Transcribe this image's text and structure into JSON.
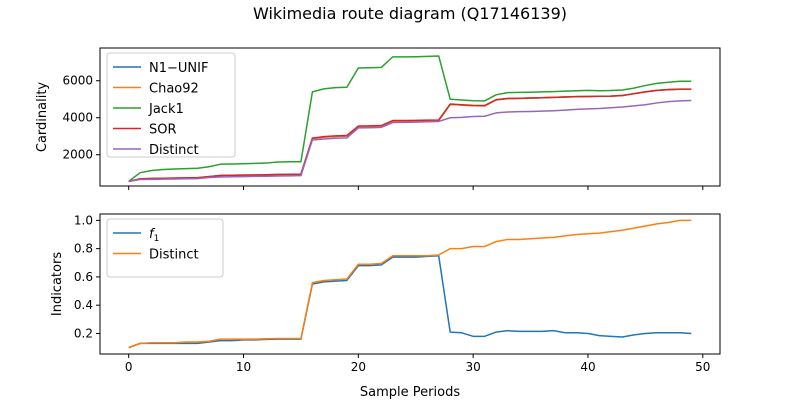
{
  "figure": {
    "title": "Wikimedia route diagram (Q17146139)",
    "xlabel": "Sample Periods"
  },
  "chart_data": [
    {
      "type": "line",
      "title": "",
      "xlabel": "",
      "ylabel": "Cardinality",
      "xlim": [
        -2.5,
        51.5
      ],
      "ylim": [
        310,
        7770
      ],
      "xticks": [
        0,
        10,
        20,
        30,
        40,
        50
      ],
      "yticks": [
        2000,
        4000,
        6000
      ],
      "show_xtick_labels": false,
      "grid": false,
      "legend_position": "upper-left",
      "x": [
        0,
        1,
        2,
        3,
        4,
        5,
        6,
        7,
        8,
        9,
        10,
        11,
        12,
        13,
        14,
        15,
        16,
        17,
        18,
        19,
        20,
        21,
        22,
        23,
        24,
        25,
        26,
        27,
        28,
        29,
        30,
        31,
        32,
        33,
        34,
        35,
        36,
        37,
        38,
        39,
        40,
        41,
        42,
        43,
        44,
        45,
        46,
        47,
        48,
        49
      ],
      "series": [
        {
          "name": "N1−UNIF",
          "color": "#1f77b4",
          "values": [
            560,
            680,
            700,
            720,
            730,
            740,
            750,
            820,
            880,
            890,
            900,
            905,
            915,
            930,
            940,
            950,
            2880,
            2950,
            2990,
            3010,
            3510,
            3520,
            3540,
            3820,
            3820,
            3830,
            3840,
            3850,
            4720,
            4690,
            4650,
            4640,
            4960,
            5040,
            5050,
            5070,
            5080,
            5100,
            5120,
            5140,
            5150,
            5160,
            5170,
            5200,
            5300,
            5400,
            5480,
            5520,
            5540,
            5540
          ]
        },
        {
          "name": "Chao92",
          "color": "#ff7f0e",
          "values": [
            560,
            680,
            700,
            720,
            730,
            740,
            750,
            820,
            880,
            890,
            900,
            905,
            915,
            930,
            940,
            950,
            2880,
            2950,
            2990,
            3010,
            3510,
            3520,
            3540,
            3820,
            3820,
            3830,
            3840,
            3850,
            4720,
            4690,
            4650,
            4640,
            4960,
            5040,
            5050,
            5070,
            5080,
            5100,
            5120,
            5140,
            5150,
            5160,
            5170,
            5200,
            5300,
            5400,
            5480,
            5520,
            5540,
            5540
          ]
        },
        {
          "name": "Jack1",
          "color": "#2ca02c",
          "values": [
            560,
            1030,
            1150,
            1200,
            1230,
            1250,
            1270,
            1350,
            1490,
            1500,
            1510,
            1530,
            1550,
            1610,
            1620,
            1620,
            5400,
            5560,
            5630,
            5650,
            6690,
            6700,
            6720,
            7290,
            7290,
            7300,
            7320,
            7340,
            5000,
            4960,
            4920,
            4910,
            5240,
            5360,
            5370,
            5380,
            5400,
            5410,
            5440,
            5460,
            5480,
            5460,
            5470,
            5500,
            5600,
            5740,
            5860,
            5920,
            5970,
            5970
          ]
        },
        {
          "name": "SOR",
          "color": "#d62728",
          "values": [
            560,
            700,
            720,
            730,
            740,
            750,
            760,
            820,
            880,
            890,
            900,
            905,
            915,
            930,
            940,
            950,
            2900,
            2980,
            3020,
            3040,
            3550,
            3560,
            3580,
            3850,
            3850,
            3860,
            3870,
            3880,
            4740,
            4700,
            4670,
            4660,
            4980,
            5040,
            5050,
            5070,
            5080,
            5100,
            5120,
            5140,
            5150,
            5160,
            5170,
            5200,
            5300,
            5400,
            5480,
            5520,
            5550,
            5550
          ]
        },
        {
          "name": "Distinct",
          "color": "#9467bd",
          "values": [
            560,
            660,
            670,
            680,
            690,
            700,
            710,
            770,
            800,
            810,
            820,
            830,
            840,
            850,
            860,
            870,
            2800,
            2850,
            2890,
            2910,
            3450,
            3460,
            3480,
            3740,
            3750,
            3760,
            3780,
            3800,
            4000,
            4020,
            4070,
            4080,
            4260,
            4310,
            4330,
            4340,
            4360,
            4380,
            4410,
            4450,
            4480,
            4500,
            4540,
            4580,
            4640,
            4700,
            4800,
            4870,
            4910,
            4930
          ]
        }
      ]
    },
    {
      "type": "line",
      "title": "",
      "xlabel": "Sample Periods",
      "ylabel": "Indicators",
      "xlim": [
        -2.5,
        51.5
      ],
      "ylim": [
        0.055,
        1.045
      ],
      "xticks": [
        0,
        10,
        20,
        30,
        40,
        50
      ],
      "yticks": [
        0.2,
        0.4,
        0.6,
        0.8,
        1.0
      ],
      "ytick_labels": [
        "0.2",
        "0.4",
        "0.6",
        "0.8",
        "1.0"
      ],
      "show_xtick_labels": true,
      "grid": false,
      "legend_position": "upper-left",
      "x": [
        0,
        1,
        2,
        3,
        4,
        5,
        6,
        7,
        8,
        9,
        10,
        11,
        12,
        13,
        14,
        15,
        16,
        17,
        18,
        19,
        20,
        21,
        22,
        23,
        24,
        25,
        26,
        27,
        28,
        29,
        30,
        31,
        32,
        33,
        34,
        35,
        36,
        37,
        38,
        39,
        40,
        41,
        42,
        43,
        44,
        45,
        46,
        47,
        48,
        49
      ],
      "series": [
        {
          "name": "f",
          "name_subscript": "1",
          "color": "#1f77b4",
          "values": [
            0.1,
            0.13,
            0.13,
            0.13,
            0.13,
            0.13,
            0.13,
            0.14,
            0.15,
            0.15,
            0.155,
            0.155,
            0.158,
            0.16,
            0.16,
            0.16,
            0.55,
            0.565,
            0.57,
            0.575,
            0.68,
            0.68,
            0.685,
            0.74,
            0.74,
            0.74,
            0.745,
            0.75,
            0.21,
            0.205,
            0.18,
            0.18,
            0.21,
            0.22,
            0.215,
            0.215,
            0.215,
            0.22,
            0.205,
            0.205,
            0.2,
            0.185,
            0.18,
            0.175,
            0.19,
            0.2,
            0.205,
            0.205,
            0.205,
            0.2
          ]
        },
        {
          "name": "Distinct",
          "color": "#ff7f0e",
          "values": [
            0.1,
            0.13,
            0.135,
            0.135,
            0.135,
            0.14,
            0.14,
            0.145,
            0.16,
            0.16,
            0.16,
            0.16,
            0.163,
            0.165,
            0.165,
            0.165,
            0.56,
            0.575,
            0.58,
            0.585,
            0.69,
            0.69,
            0.695,
            0.75,
            0.75,
            0.75,
            0.75,
            0.755,
            0.8,
            0.8,
            0.815,
            0.815,
            0.85,
            0.865,
            0.865,
            0.87,
            0.875,
            0.88,
            0.89,
            0.9,
            0.905,
            0.91,
            0.92,
            0.93,
            0.945,
            0.96,
            0.975,
            0.985,
            1.0,
            1.0
          ]
        }
      ]
    }
  ]
}
